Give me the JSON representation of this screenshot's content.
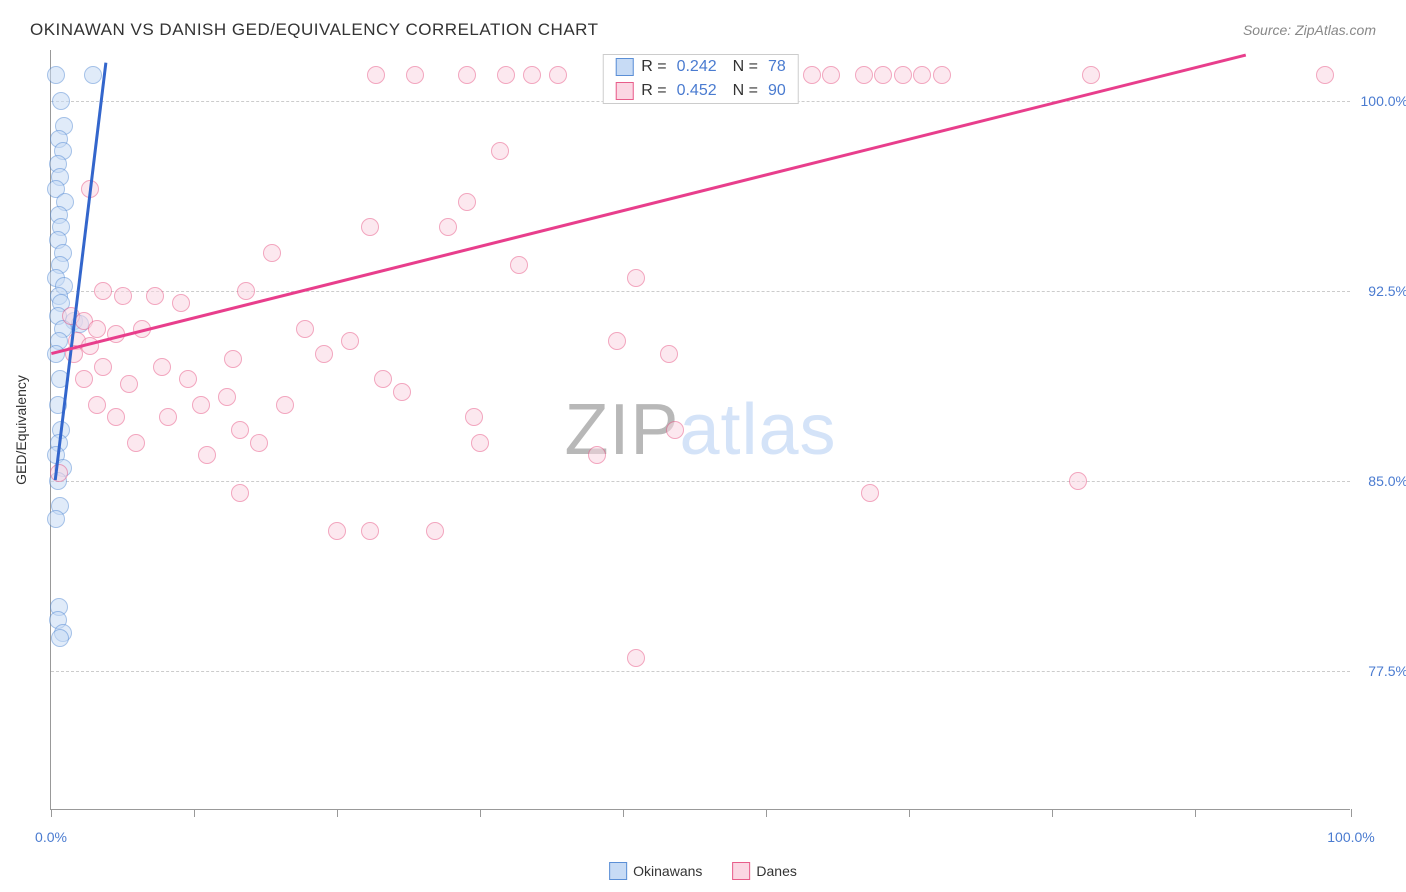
{
  "header": {
    "title": "OKINAWAN VS DANISH GED/EQUIVALENCY CORRELATION CHART",
    "source": "Source: ZipAtlas.com"
  },
  "watermark": {
    "part1": "ZIP",
    "part2": "atlas"
  },
  "chart": {
    "type": "scatter",
    "ylabel": "GED/Equivalency",
    "background_color": "#ffffff",
    "grid_color": "#cccccc",
    "axis_color": "#999999",
    "tick_label_color": "#4a7bd0",
    "label_fontsize": 14,
    "title_fontsize": 17,
    "marker_radius": 9,
    "marker_opacity": 0.55,
    "xlim": [
      0,
      100
    ],
    "ylim": [
      72,
      102
    ],
    "xtick_positions_pct": [
      0,
      11,
      22,
      33,
      44,
      55,
      66,
      77,
      88,
      100
    ],
    "xtick_labels": {
      "first": "0.0%",
      "last": "100.0%"
    },
    "yticks": [
      {
        "value": 100.0,
        "label": "100.0%"
      },
      {
        "value": 92.5,
        "label": "92.5%"
      },
      {
        "value": 85.0,
        "label": "85.0%"
      },
      {
        "value": 77.5,
        "label": "77.5%"
      }
    ],
    "series": [
      {
        "name": "Okinawans",
        "marker_fill": "#c7dbf5",
        "marker_stroke": "#5b8fd6",
        "trend_color": "#3366cc",
        "trend_width": 3,
        "R": "0.242",
        "N": "78",
        "trendline": {
          "x1": 0.3,
          "y1": 85.0,
          "x2": 4.2,
          "y2": 101.5
        },
        "points": [
          [
            0.4,
            101.0
          ],
          [
            3.2,
            101.0
          ],
          [
            0.8,
            100.0
          ],
          [
            1.0,
            99.0
          ],
          [
            0.6,
            98.5
          ],
          [
            0.9,
            98.0
          ],
          [
            0.5,
            97.5
          ],
          [
            0.7,
            97.0
          ],
          [
            0.4,
            96.5
          ],
          [
            1.1,
            96.0
          ],
          [
            0.6,
            95.5
          ],
          [
            0.8,
            95.0
          ],
          [
            0.5,
            94.5
          ],
          [
            0.9,
            94.0
          ],
          [
            0.7,
            93.5
          ],
          [
            0.4,
            93.0
          ],
          [
            1.0,
            92.7
          ],
          [
            0.6,
            92.3
          ],
          [
            0.8,
            92.0
          ],
          [
            0.5,
            91.5
          ],
          [
            1.8,
            91.3
          ],
          [
            2.2,
            91.2
          ],
          [
            0.9,
            91.0
          ],
          [
            0.6,
            90.5
          ],
          [
            0.4,
            90.0
          ],
          [
            0.7,
            89.0
          ],
          [
            0.5,
            88.0
          ],
          [
            0.8,
            87.0
          ],
          [
            0.6,
            86.5
          ],
          [
            0.4,
            86.0
          ],
          [
            0.9,
            85.5
          ],
          [
            0.5,
            85.0
          ],
          [
            0.7,
            84.0
          ],
          [
            0.4,
            83.5
          ],
          [
            0.6,
            80.0
          ],
          [
            0.5,
            79.5
          ],
          [
            0.9,
            79.0
          ],
          [
            0.7,
            78.8
          ]
        ]
      },
      {
        "name": "Danes",
        "marker_fill": "#fbd7e3",
        "marker_stroke": "#e85d8a",
        "trend_color": "#e83e8c",
        "trend_width": 3,
        "R": "0.452",
        "N": "90",
        "trendline": {
          "x1": 0.0,
          "y1": 90.0,
          "x2": 92.0,
          "y2": 101.8
        },
        "points": [
          [
            25.0,
            101.0
          ],
          [
            28.0,
            101.0
          ],
          [
            32.0,
            101.0
          ],
          [
            35.0,
            101.0
          ],
          [
            37.0,
            101.0
          ],
          [
            39.0,
            101.0
          ],
          [
            47.0,
            101.0
          ],
          [
            53.0,
            101.0
          ],
          [
            56.5,
            101.0
          ],
          [
            58.5,
            101.0
          ],
          [
            60.0,
            101.0
          ],
          [
            62.5,
            101.0
          ],
          [
            64.0,
            101.0
          ],
          [
            65.5,
            101.0
          ],
          [
            67.0,
            101.0
          ],
          [
            68.5,
            101.0
          ],
          [
            80.0,
            101.0
          ],
          [
            98.0,
            101.0
          ],
          [
            34.5,
            98.0
          ],
          [
            3.0,
            96.5
          ],
          [
            32.0,
            96.0
          ],
          [
            24.5,
            95.0
          ],
          [
            30.5,
            95.0
          ],
          [
            17.0,
            94.0
          ],
          [
            36.0,
            93.5
          ],
          [
            45.0,
            93.0
          ],
          [
            4.0,
            92.5
          ],
          [
            5.5,
            92.3
          ],
          [
            8.0,
            92.3
          ],
          [
            10.0,
            92.0
          ],
          [
            15.0,
            92.5
          ],
          [
            1.5,
            91.5
          ],
          [
            2.5,
            91.3
          ],
          [
            3.5,
            91.0
          ],
          [
            5.0,
            90.8
          ],
          [
            7.0,
            91.0
          ],
          [
            2.0,
            90.5
          ],
          [
            3.0,
            90.3
          ],
          [
            19.5,
            91.0
          ],
          [
            23.0,
            90.5
          ],
          [
            1.8,
            90.0
          ],
          [
            4.0,
            89.5
          ],
          [
            8.5,
            89.5
          ],
          [
            14.0,
            89.8
          ],
          [
            43.5,
            90.5
          ],
          [
            2.5,
            89.0
          ],
          [
            6.0,
            88.8
          ],
          [
            10.5,
            89.0
          ],
          [
            21.0,
            90.0
          ],
          [
            47.5,
            90.0
          ],
          [
            3.5,
            88.0
          ],
          [
            11.5,
            88.0
          ],
          [
            13.5,
            88.3
          ],
          [
            18.0,
            88.0
          ],
          [
            25.5,
            89.0
          ],
          [
            5.0,
            87.5
          ],
          [
            9.0,
            87.5
          ],
          [
            14.5,
            87.0
          ],
          [
            27.0,
            88.5
          ],
          [
            48.0,
            87.0
          ],
          [
            6.5,
            86.5
          ],
          [
            12.0,
            86.0
          ],
          [
            16.0,
            86.5
          ],
          [
            33.0,
            86.5
          ],
          [
            42.0,
            86.0
          ],
          [
            0.6,
            85.3
          ],
          [
            79.0,
            85.0
          ],
          [
            63.0,
            84.5
          ],
          [
            14.5,
            84.5
          ],
          [
            32.5,
            87.5
          ],
          [
            22.0,
            83.0
          ],
          [
            24.5,
            83.0
          ],
          [
            29.5,
            83.0
          ],
          [
            45.0,
            78.0
          ]
        ]
      }
    ],
    "legend_bottom": [
      {
        "label": "Okinawans",
        "fill": "#c7dbf5",
        "stroke": "#5b8fd6"
      },
      {
        "label": "Danes",
        "fill": "#fbd7e3",
        "stroke": "#e85d8a"
      }
    ]
  }
}
